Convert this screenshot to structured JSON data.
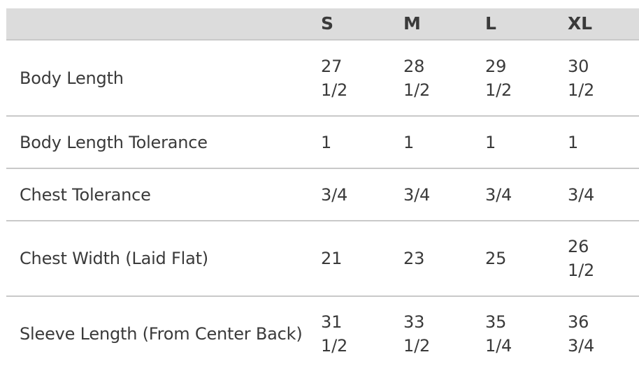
{
  "size_chart": {
    "headers": [
      "",
      "S",
      "M",
      "L",
      "XL"
    ],
    "rows": [
      {
        "label": "Body Length",
        "values": [
          "27\n1/2",
          "28\n1/2",
          "29\n1/2",
          "30\n1/2"
        ]
      },
      {
        "label": "Body Length Tolerance",
        "values": [
          "1",
          "1",
          "1",
          "1"
        ]
      },
      {
        "label": "Chest Tolerance",
        "values": [
          "3/4",
          "3/4",
          "3/4",
          "3/4"
        ]
      },
      {
        "label": "Chest Width (Laid Flat)",
        "values": [
          "21",
          "23",
          "25",
          "26\n1/2"
        ]
      },
      {
        "label": "Sleeve Length (From Center Back)",
        "values": [
          "31\n1/2",
          "33\n1/2",
          "35\n1/4",
          "36\n3/4"
        ]
      }
    ]
  }
}
